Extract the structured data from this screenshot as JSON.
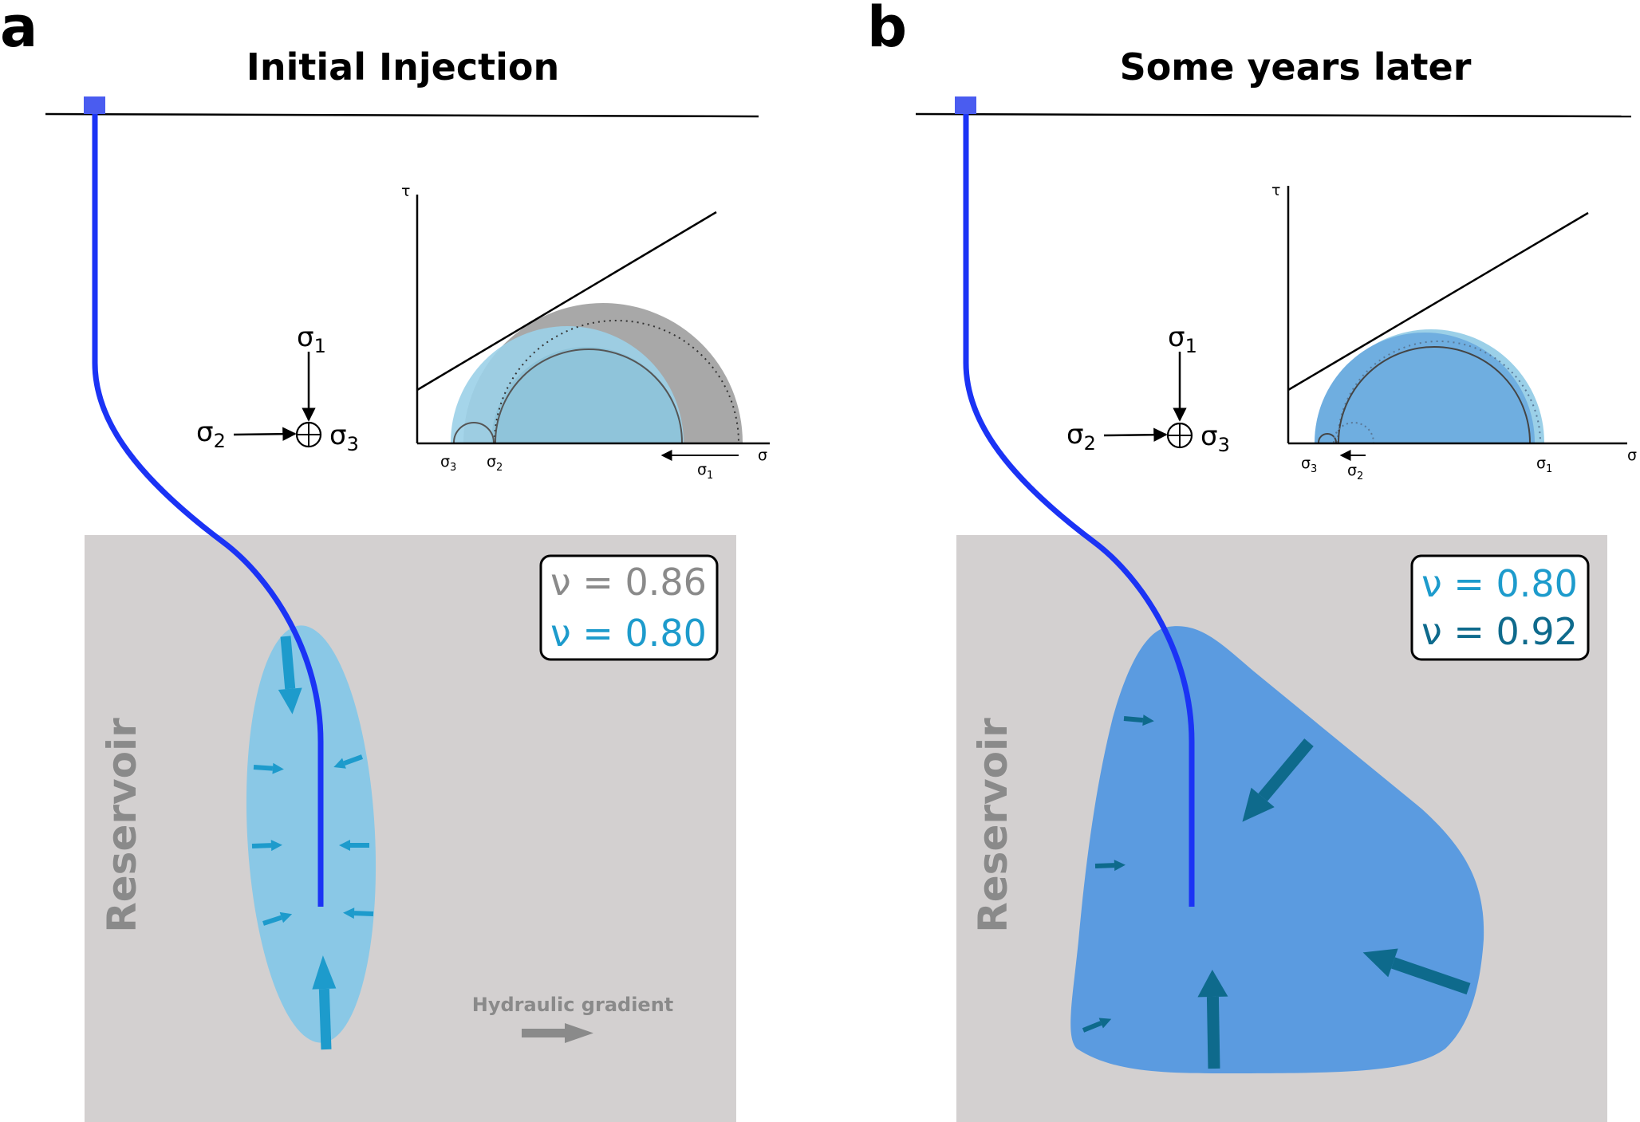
{
  "colors": {
    "well": "#1b33f5",
    "wellhead": "#4a5cf0",
    "reservoir": "#d3d0d0",
    "plume_a": "#8ac8e6",
    "arrow_a": "#1d9bcc",
    "plume_b": "#5b9be0",
    "arrow_b": "#0e6a8c",
    "nu_gray": "#8a8a8a",
    "nu_blue": "#1d9bcc",
    "nu_dark": "#0e6a8c",
    "mohr_gray": "#a8a8a8",
    "mohr_light": "#9bd0e8",
    "mohr_mid": "#8fc4da",
    "mohr_blue": "#6faee0"
  },
  "panel_a": {
    "letter": "a",
    "title": "Initial Injection",
    "sigma1": "σ",
    "sigma1_sub": "1",
    "sigma2": "σ",
    "sigma2_sub": "2",
    "sigma3": "σ",
    "sigma3_sub": "3",
    "mohr": {
      "tau_label": "τ",
      "sigma_axis_label": "σ",
      "s3_label": "σ",
      "s3_sub": "3",
      "s2_label": "σ",
      "s2_sub": "2",
      "s1_label": "σ",
      "s1_sub": "1"
    },
    "reservoir_label": "Reservoir",
    "nu_top": "ν = 0.86",
    "nu_bottom": "ν = 0.80",
    "hydraulic_label": "Hydraulic gradient"
  },
  "panel_b": {
    "letter": "b",
    "title": "Some years later",
    "sigma1": "σ",
    "sigma1_sub": "1",
    "sigma2": "σ",
    "sigma2_sub": "2",
    "sigma3": "σ",
    "sigma3_sub": "3",
    "mohr": {
      "tau_label": "τ",
      "sigma_axis_label": "σ",
      "s3_label": "σ",
      "s3_sub": "3",
      "s2_label": "σ",
      "s2_sub": "2",
      "s1_label": "σ",
      "s1_sub": "1"
    },
    "reservoir_label": "Reservoir",
    "nu_top": "ν = 0.80",
    "nu_bottom": "ν = 0.92"
  }
}
